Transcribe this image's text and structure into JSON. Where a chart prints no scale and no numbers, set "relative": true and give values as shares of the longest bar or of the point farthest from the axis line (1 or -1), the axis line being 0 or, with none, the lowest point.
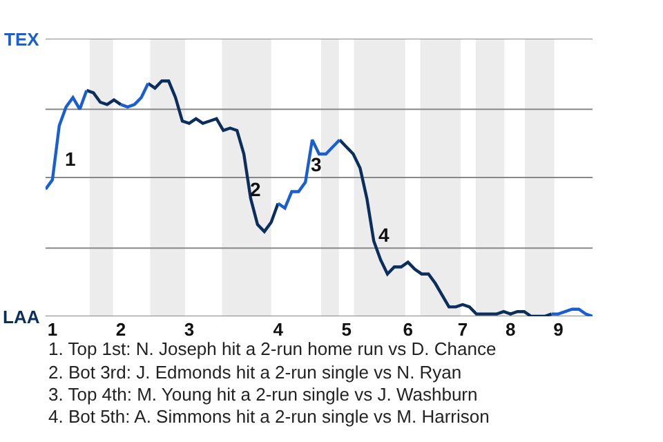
{
  "chart_data": {
    "type": "line",
    "relative": true,
    "categories": [
      null,
      "1",
      null,
      null,
      null,
      null,
      null,
      null,
      null,
      null,
      null,
      "2",
      null,
      null,
      null,
      null,
      null,
      null,
      null,
      null,
      null,
      "3",
      null,
      null,
      null,
      null,
      null,
      null,
      null,
      null,
      null,
      null,
      null,
      null,
      "4",
      null,
      null,
      null,
      null,
      null,
      null,
      null,
      null,
      null,
      "5",
      null,
      null,
      null,
      null,
      null,
      null,
      null,
      null,
      "6",
      null,
      null,
      null,
      null,
      null,
      null,
      null,
      "7",
      null,
      null,
      null,
      null,
      null,
      null,
      "8",
      null,
      null,
      null,
      null,
      null,
      null,
      "9",
      null,
      null,
      null,
      null,
      null
    ],
    "series": [
      {
        "color": "#1a5fd0",
        "values": [
          0.54,
          0.58,
          0.81,
          0.89,
          0.93,
          0.88,
          0.96,
          null,
          null,
          null,
          null,
          0.9,
          0.89,
          0.9,
          0.93,
          0.99,
          null,
          null,
          null,
          null,
          null,
          null,
          null,
          null,
          null,
          null,
          null,
          null,
          null,
          null,
          null,
          null,
          null,
          null,
          0.48,
          0.46,
          0.53,
          0.53,
          0.57,
          0.75,
          0.69,
          0.69,
          0.72,
          0.75,
          null,
          null,
          null,
          null,
          null,
          null,
          null,
          null,
          null,
          null,
          null,
          null,
          null,
          null,
          null,
          null,
          null,
          null,
          null,
          null,
          null,
          null,
          null,
          null,
          null,
          null,
          null,
          null,
          null,
          null,
          0.01,
          0.01,
          0.02,
          0.03,
          0.03,
          0.01,
          0
        ]
      },
      {
        "color": "#0b2e5c",
        "values": [
          null,
          null,
          null,
          null,
          null,
          null,
          0.96,
          0.95,
          0.91,
          0.9,
          0.92,
          0.9,
          null,
          null,
          null,
          0.99,
          0.97,
          1.0,
          1.0,
          0.93,
          0.83,
          0.82,
          0.84,
          0.82,
          0.83,
          0.84,
          0.79,
          0.8,
          0.79,
          0.69,
          0.5,
          0.39,
          0.36,
          0.4,
          0.48,
          null,
          null,
          null,
          null,
          null,
          null,
          null,
          null,
          0.75,
          0.72,
          0.69,
          0.63,
          0.5,
          0.32,
          0.24,
          0.18,
          0.21,
          0.21,
          0.23,
          0.2,
          0.18,
          0.18,
          0.14,
          0.09,
          0.04,
          0.04,
          0.05,
          0.04,
          0.01,
          0.01,
          0.01,
          0.01,
          0.02,
          0.01,
          0.02,
          0.02,
          0,
          0,
          0,
          0.01,
          null,
          null,
          null,
          null,
          null,
          null
        ]
      }
    ],
    "marker": "none",
    "line_style": "solid",
    "ref_lines": [
      {
        "axis": "y",
        "value": 0,
        "label": "LAA",
        "color": "#888888"
      },
      {
        "axis": "y",
        "value": 0.29,
        "color": "#888888"
      },
      {
        "axis": "y",
        "value": 0.59,
        "color": "#888888"
      },
      {
        "axis": "y",
        "value": 0.88,
        "color": "#888888"
      },
      {
        "axis": "y",
        "value": 1.18,
        "label": "TEX",
        "color": "#888888"
      }
    ],
    "annotations": [
      "1",
      "2",
      "3",
      "4",
      "1. Top 1st: N. Joseph hit a 2-run home run vs D. Chance",
      "2. Bot 3rd: J. Edmonds hit a 2-run single vs N. Ryan",
      "3. Top 4th: M. Young hit a 2-run single vs J. Washburn",
      "4. Bot 5th: A. Simmons hit a 2-run single vs M. Harrison"
    ]
  }
}
